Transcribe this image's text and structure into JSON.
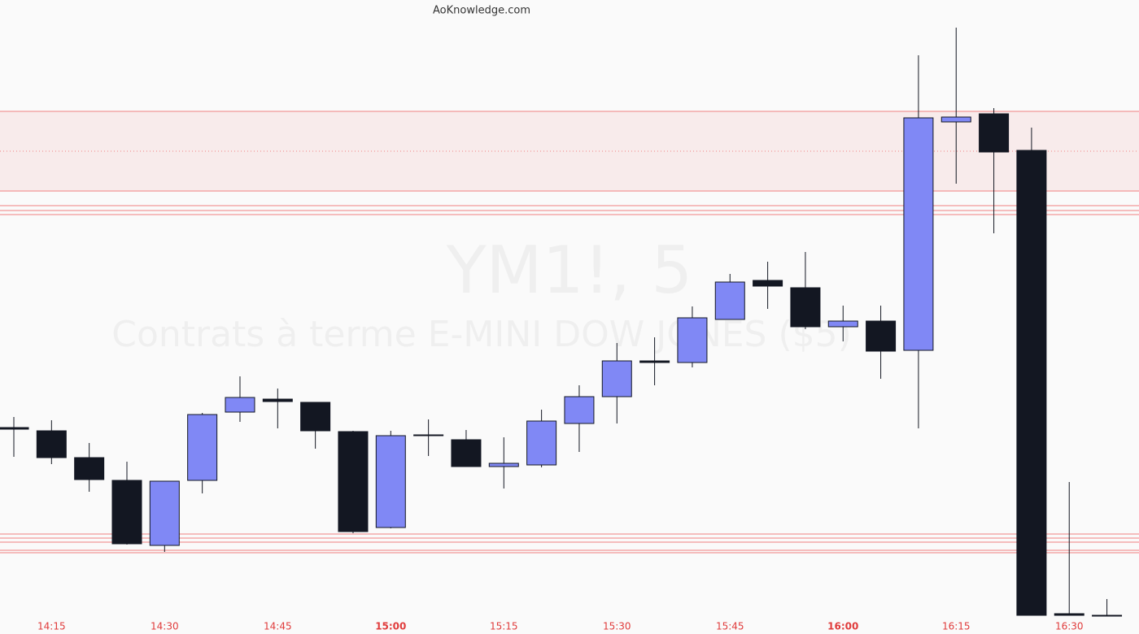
{
  "header": {
    "site": "AoKnowledge.com"
  },
  "chart_data": {
    "type": "candlestick",
    "watermark": {
      "symbol": "YM1!, 5",
      "name": "Contrats à terme E-MINI DOW JONES ($5)"
    },
    "categories": [
      null,
      "14:15",
      null,
      null,
      "14:30",
      null,
      null,
      "14:45",
      null,
      null,
      "15:00",
      null,
      null,
      "15:15",
      null,
      null,
      "15:30",
      null,
      null,
      "15:45",
      null,
      null,
      "16:00",
      null,
      null,
      "16:15",
      null,
      null,
      "16:30",
      null
    ],
    "open": [
      254,
      250,
      217,
      189,
      109,
      189,
      273,
      289,
      285,
      249,
      131,
      245,
      239,
      206,
      208,
      259,
      292,
      336,
      334,
      387,
      435,
      426,
      378,
      385,
      349,
      630,
      640,
      595,
      25,
      23
    ],
    "high": [
      267,
      263,
      235,
      212,
      188,
      272,
      317,
      302,
      285,
      250,
      250,
      264,
      251,
      242,
      276,
      306,
      358,
      365,
      403,
      443,
      458,
      470,
      404,
      404,
      712,
      746,
      647,
      623,
      187,
      43
    ],
    "low": [
      218,
      209,
      175,
      110,
      101,
      173,
      261,
      253,
      228,
      124,
      130,
      219,
      206,
      179,
      205,
      224,
      259,
      306,
      328,
      387,
      400,
      375,
      360,
      314,
      253,
      554,
      493,
      23,
      23,
      23
    ],
    "close": [
      252,
      217,
      190,
      111,
      188,
      270,
      291,
      286,
      250,
      126,
      244,
      244,
      206,
      210,
      262,
      292,
      336,
      334,
      389,
      433,
      428,
      378,
      385,
      348,
      635,
      636,
      593,
      23,
      23,
      23
    ],
    "up_color": "#8088f5",
    "down_color": "#131722",
    "zone": [
      545,
      643
    ],
    "zone_color": "#f08080",
    "levels": [
      643,
      545,
      527,
      521,
      516,
      123,
      118,
      113,
      103,
      100
    ],
    "dashed_levels": [
      594
    ],
    "ylim": [
      23,
      780
    ]
  }
}
